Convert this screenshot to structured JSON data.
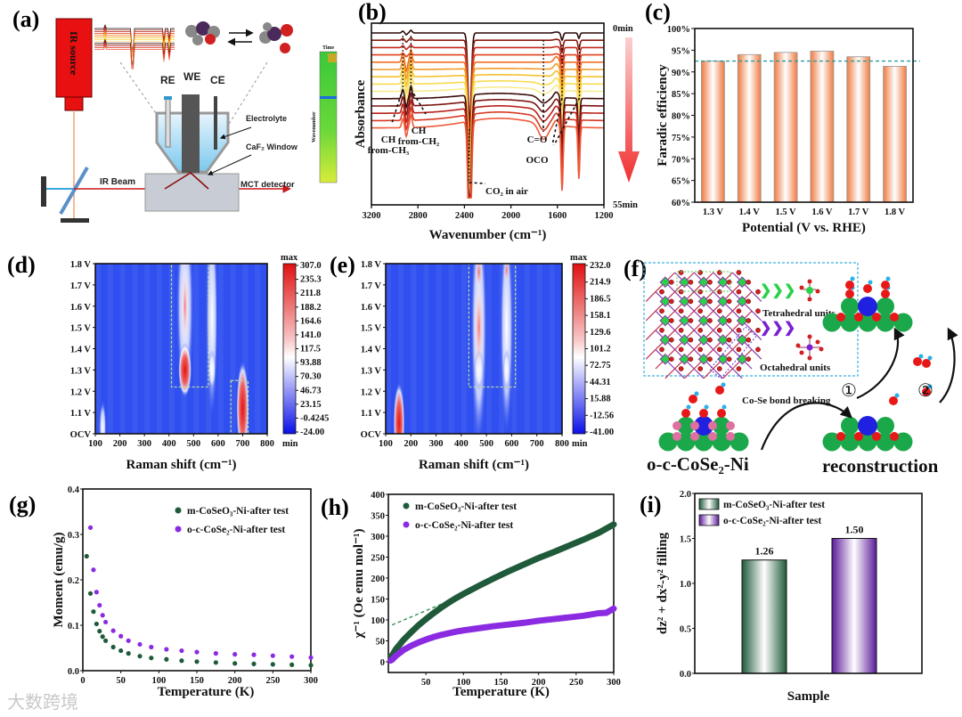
{
  "panel_a": {
    "label": "(a)",
    "ir_source": "IR source",
    "re": "RE",
    "we": "WE",
    "ce": "CE",
    "electrolyte": "Electrolyte",
    "caf2_window": "CaF₂ Window",
    "ir_beam": "IR Beam",
    "mct_detector": "MCT detector",
    "inset_time": "Time",
    "inset_wavenumber": "Wavenumber"
  },
  "panel_f": {
    "label": "(f)",
    "tetrahedral": "Tetrahedral units",
    "octahedral": "Octahedral units",
    "bond_breaking": "Co-Se bond breaking",
    "step1": "①",
    "step2": "②",
    "sample": "o-c-CoSe₂-Ni",
    "reconstruction": "reconstruction"
  },
  "watermark": "大数跨境",
  "chart_data": [
    {
      "id": "b",
      "label": "(b)",
      "type": "line",
      "xlabel": "Wavenumber (cm⁻¹)",
      "ylabel": "Absorbance",
      "xlim": [
        3200,
        1200
      ],
      "xticks": [
        3200,
        2800,
        2400,
        2000,
        1600,
        1200
      ],
      "time_start": "0min",
      "time_end": "55min",
      "series_colors": [
        "#2a0a08",
        "#8a1a10",
        "#c0281a",
        "#e0401c",
        "#f07020",
        "#f39a28",
        "#f5c030",
        "#f7dc50",
        "#f8ec90",
        "#3a0c0a",
        "#7a1410",
        "#b8201a",
        "#d83822",
        "#ee5a3a"
      ],
      "annotations": [
        {
          "line1": "CH",
          "line2": "from-CH₃",
          "x": 2930
        },
        {
          "line1": "CH",
          "line2": "from-CH₂",
          "x": 2860
        },
        {
          "line1": "CO₂ in air",
          "line2": "",
          "x": 2360
        },
        {
          "line1": "C=O",
          "line2": "",
          "x": 1720
        },
        {
          "line1": "OCO",
          "line2": "",
          "x": 1560
        },
        {
          "line1": "",
          "line2": "",
          "x": 1410
        }
      ]
    },
    {
      "id": "c",
      "label": "(c)",
      "type": "bar",
      "categories": [
        "1.3 V",
        "1.4 V",
        "1.5 V",
        "1.6 V",
        "1.7 V",
        "1.8 V"
      ],
      "values": [
        92.5,
        94.0,
        94.5,
        94.8,
        93.5,
        91.3
      ],
      "reference_line": 92.5,
      "xlabel": "Potential (V vs. RHE)",
      "ylabel": "Faradic efficiency",
      "ylim": [
        60,
        100
      ],
      "yticks": [
        "60%",
        "65%",
        "70%",
        "75%",
        "80%",
        "85%",
        "90%",
        "95%",
        "100%"
      ],
      "bar_color": "#f08a5a",
      "ref_color": "#2a9a9a"
    },
    {
      "id": "d",
      "label": "(d)",
      "type": "heatmap",
      "xlabel": "Raman shift (cm⁻¹)",
      "xlim": [
        100,
        800
      ],
      "xticks": [
        100,
        200,
        300,
        400,
        500,
        600,
        700,
        800
      ],
      "yticks": [
        "OCV",
        "1.1 V",
        "1.2 V",
        "1.3 V",
        "1.4 V",
        "1.5 V",
        "1.6 V",
        "1.7 V",
        "1.8 V"
      ],
      "colorbar": {
        "max_label": "max",
        "min_label": "min",
        "ticks": [
          "307.0",
          "235.3",
          "211.8",
          "188.2",
          "164.6",
          "141.0",
          "117.5",
          "93.88",
          "70.30",
          "46.73",
          "23.15",
          "-0.4245",
          "-24.00"
        ]
      },
      "hotspots": [
        {
          "shift": 465,
          "potential": 1.6,
          "level": "mid",
          "ds": 22,
          "dp": 0.28
        },
        {
          "shift": 575,
          "potential": 1.55,
          "level": "mid",
          "ds": 15,
          "dp": 0.3
        },
        {
          "shift": 575,
          "potential": 1.3,
          "level": "mid",
          "ds": 10,
          "dp": 0.06
        },
        {
          "shift": 465,
          "potential": 1.3,
          "level": "max",
          "ds": 17,
          "dp": 0.08
        },
        {
          "shift": 465,
          "potential": 1.6,
          "level": "high",
          "ds": 8,
          "dp": 0.12
        },
        {
          "shift": 700,
          "potential": 1.12,
          "level": "max",
          "ds": 16,
          "dp": 0.14
        },
        {
          "shift": 130,
          "potential": 1.03,
          "level": "mid",
          "ds": 9,
          "dp": 0.08
        }
      ],
      "boxes": [
        [
          410,
          560,
          1.22,
          1.8
        ],
        [
          652,
          722,
          1.0,
          1.25
        ]
      ]
    },
    {
      "id": "e",
      "label": "(e)",
      "type": "heatmap",
      "xlabel": "Raman shift (cm⁻¹)",
      "xlim": [
        100,
        800
      ],
      "xticks": [
        100,
        200,
        300,
        400,
        500,
        600,
        700,
        800
      ],
      "yticks": [
        "OCV",
        "1.1 V",
        "1.2 V",
        "1.3 V",
        "1.4 V",
        "1.5 V",
        "1.6 V",
        "1.7 V",
        "1.8 V"
      ],
      "colorbar": {
        "max_label": "max",
        "min_label": "min",
        "ticks": [
          "232.0",
          "214.9",
          "186.5",
          "158.1",
          "129.6",
          "101.2",
          "72.75",
          "44.31",
          "15.88",
          "-12.56",
          "-41.00"
        ]
      },
      "hotspots": [
        {
          "shift": 470,
          "potential": 1.5,
          "level": "mid",
          "ds": 20,
          "dp": 0.35
        },
        {
          "shift": 580,
          "potential": 1.5,
          "level": "mid",
          "ds": 16,
          "dp": 0.32
        },
        {
          "shift": 580,
          "potential": 1.3,
          "level": "mid",
          "ds": 9,
          "dp": 0.06
        },
        {
          "shift": 470,
          "potential": 1.3,
          "level": "mid",
          "ds": 12,
          "dp": 0.06
        },
        {
          "shift": 470,
          "potential": 1.5,
          "level": "high",
          "ds": 11,
          "dp": 0.14
        },
        {
          "shift": 470,
          "potential": 1.76,
          "level": "high",
          "ds": 9,
          "dp": 0.05
        },
        {
          "shift": 580,
          "potential": 1.77,
          "level": "high",
          "ds": 7,
          "dp": 0.04
        },
        {
          "shift": 153,
          "potential": 1.05,
          "level": "max",
          "ds": 14,
          "dp": 0.12
        }
      ],
      "boxes": [
        [
          430,
          615,
          1.22,
          1.8
        ]
      ]
    },
    {
      "id": "g",
      "label": "(g)",
      "type": "scatter",
      "xlabel": "Temperature (K)",
      "ylabel": "Moment (emu/g)",
      "xlim": [
        0,
        300
      ],
      "ylim": [
        0,
        0.4
      ],
      "xticks": [
        0,
        50,
        100,
        150,
        200,
        250,
        300
      ],
      "yticks": [
        "0.0",
        "0.1",
        "0.2",
        "0.3",
        "0.4"
      ],
      "legend": "top-right",
      "series": [
        {
          "name": "m-CoSeO₃-Ni-after test",
          "color": "#1f5a3a",
          "x": [
            5,
            10,
            14,
            18,
            22,
            26,
            30,
            40,
            50,
            60,
            75,
            90,
            110,
            130,
            150,
            175,
            200,
            225,
            250,
            275,
            300
          ],
          "y": [
            0.252,
            0.17,
            0.13,
            0.103,
            0.087,
            0.075,
            0.066,
            0.052,
            0.044,
            0.038,
            0.032,
            0.028,
            0.025,
            0.022,
            0.02,
            0.018,
            0.016,
            0.015,
            0.014,
            0.013,
            0.012
          ]
        },
        {
          "name": "o-c-CoSe₂-Ni-after test",
          "color": "#8a2be2",
          "x": [
            10,
            14,
            18,
            22,
            26,
            30,
            40,
            50,
            60,
            75,
            90,
            110,
            130,
            150,
            175,
            200,
            225,
            250,
            275,
            300
          ],
          "y": [
            0.315,
            0.222,
            0.173,
            0.144,
            0.122,
            0.107,
            0.088,
            0.076,
            0.066,
            0.058,
            0.052,
            0.047,
            0.044,
            0.041,
            0.038,
            0.036,
            0.035,
            0.033,
            0.031,
            0.029
          ]
        }
      ]
    },
    {
      "id": "h",
      "label": "(h)",
      "type": "scatter",
      "xlabel": "Temperature (K)",
      "ylabel": "χ⁻¹ (Oe emu mol⁻¹)",
      "xlim": [
        0,
        300
      ],
      "ylim": [
        0,
        400
      ],
      "xticks": [
        50,
        100,
        150,
        200,
        250,
        300
      ],
      "yticks": [
        "0",
        "50",
        "100",
        "150",
        "200",
        "250",
        "300",
        "350",
        "400"
      ],
      "legend": "top-left",
      "series": [
        {
          "name": "m-CoSeO₃-Ni-after test",
          "color": "#1f5a3a",
          "x": [
            3,
            5,
            10,
            20,
            30,
            40,
            50,
            60,
            70,
            80,
            90,
            100,
            120,
            140,
            160,
            180,
            200,
            220,
            240,
            260,
            280,
            300
          ],
          "y": [
            12,
            15,
            30,
            52,
            70,
            87,
            102,
            116,
            129,
            141,
            152,
            162,
            181,
            199,
            216,
            232,
            248,
            262,
            277,
            292,
            308,
            328
          ]
        },
        {
          "name": "o-c-CoSe₂-Ni-after test",
          "color": "#8a2be2",
          "x": [
            3,
            5,
            10,
            20,
            30,
            40,
            50,
            60,
            70,
            80,
            90,
            100,
            120,
            140,
            160,
            180,
            200,
            220,
            240,
            260,
            280,
            290,
            300
          ],
          "y": [
            3,
            5,
            14,
            28,
            38,
            46,
            53,
            59,
            64,
            68,
            72,
            75,
            80,
            85,
            89,
            93,
            98,
            102,
            106,
            110,
            116,
            117,
            127
          ]
        }
      ],
      "fit_line": {
        "x": [
          5,
          100
        ],
        "y": [
          88,
          160
        ],
        "color": "#2a8a4a"
      }
    },
    {
      "id": "i",
      "label": "(i)",
      "type": "bar",
      "categories": [
        "m-CoSeO₃-Ni-after test",
        "o-c-CoSe₂-Ni-after test"
      ],
      "values": [
        1.26,
        1.5
      ],
      "value_labels": [
        "1.26",
        "1.50"
      ],
      "colors": [
        "#1f5a3a",
        "#5a1a9a"
      ],
      "xlabel": "Sample",
      "ylabel": "dz² + dx²-y² filling",
      "ylim": [
        0,
        2.0
      ],
      "yticks": [
        "0.0",
        "0.5",
        "1.0",
        "1.5",
        "2.0"
      ],
      "legend": "top-left"
    }
  ]
}
